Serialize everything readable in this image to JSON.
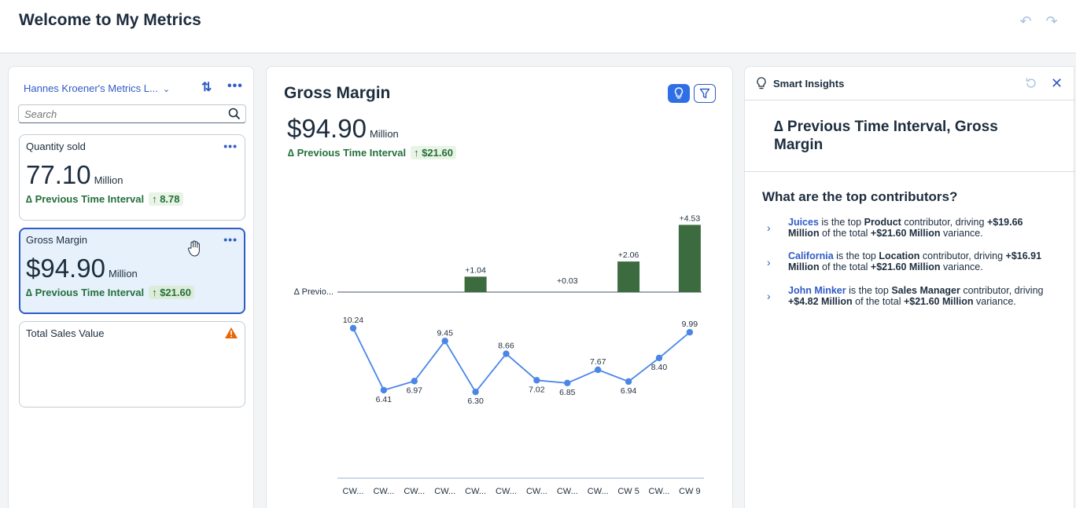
{
  "header": {
    "title": "Welcome to My Metrics",
    "undo_icon": "undo-icon",
    "redo_icon": "redo-icon"
  },
  "metrics_list": {
    "title": "Hannes Kroener's Metrics L...",
    "search_placeholder": "Search",
    "cards": [
      {
        "title": "Quantity sold",
        "value": "77.10",
        "unit": "Million",
        "delta_label": "∆ Previous Time Interval",
        "delta_value": "8.78"
      },
      {
        "title": "Gross Margin",
        "value": "$94.90",
        "unit": "Million",
        "delta_label": "∆ Previous Time Interval",
        "delta_value": "$21.60"
      },
      {
        "title": "Total Sales Value",
        "warning_icon": "warning-icon"
      }
    ]
  },
  "chart_panel": {
    "title": "Gross Margin",
    "value": "$94.90",
    "unit": "Million",
    "delta_label": "∆ Previous Time Interval",
    "delta_value": "$21.60"
  },
  "chart_data": [
    {
      "type": "bar",
      "row_label": "∆ Previo...",
      "categories": [
        "CW...",
        "CW...",
        "CW...",
        "CW...",
        "CW...",
        "CW...",
        "CW...",
        "CW...",
        "CW...",
        "CW 5",
        "CW...",
        "CW 9"
      ],
      "values": [
        0,
        0,
        0,
        0,
        1.04,
        0,
        0,
        0.03,
        0,
        2.06,
        0,
        4.53
      ],
      "labels": [
        "",
        "",
        "",
        "",
        "+1.04",
        "",
        "",
        "+0.03",
        "",
        "+2.06",
        "",
        "+4.53"
      ],
      "color": "#3d6b40"
    },
    {
      "type": "line",
      "categories": [
        "CW...",
        "CW...",
        "CW...",
        "CW...",
        "CW...",
        "CW...",
        "CW...",
        "CW...",
        "CW...",
        "CW 5",
        "CW...",
        "CW 9"
      ],
      "values": [
        10.24,
        6.41,
        6.97,
        9.45,
        6.3,
        8.66,
        7.02,
        6.85,
        7.67,
        6.94,
        8.4,
        9.99
      ],
      "labels": [
        "10.24",
        "6.41",
        "6.97",
        "9.45",
        "6.30",
        "8.66",
        "7.02",
        "6.85",
        "7.67",
        "6.94",
        "8.40",
        "9.99"
      ],
      "color": "#4a86e8"
    }
  ],
  "insights": {
    "title": "Smart Insights",
    "heading": "∆ Previous Time Interval, Gross Margin",
    "question": "What are the top contributors?",
    "items": [
      {
        "link": "Juices",
        "t1": " is the top ",
        "dim": "Product",
        "t2": " contributor, driving ",
        "amount": "+$19.66 Million",
        "t3": " of the total ",
        "total": "+$21.60 Million",
        "t4": " variance."
      },
      {
        "link": "California",
        "t1": " is the top ",
        "dim": "Location",
        "t2": " contributor, driving ",
        "amount": "+$16.91 Million",
        "t3": " of the total ",
        "total": "+$21.60 Million",
        "t4": " variance."
      },
      {
        "link": "John Minker",
        "t1": " is the top ",
        "dim": "Sales Manager",
        "t2": " contributor, driving ",
        "amount": "+$4.82 Million",
        "t3": " of the total ",
        "total": "+$21.60 Million",
        "t4": " variance."
      }
    ]
  }
}
